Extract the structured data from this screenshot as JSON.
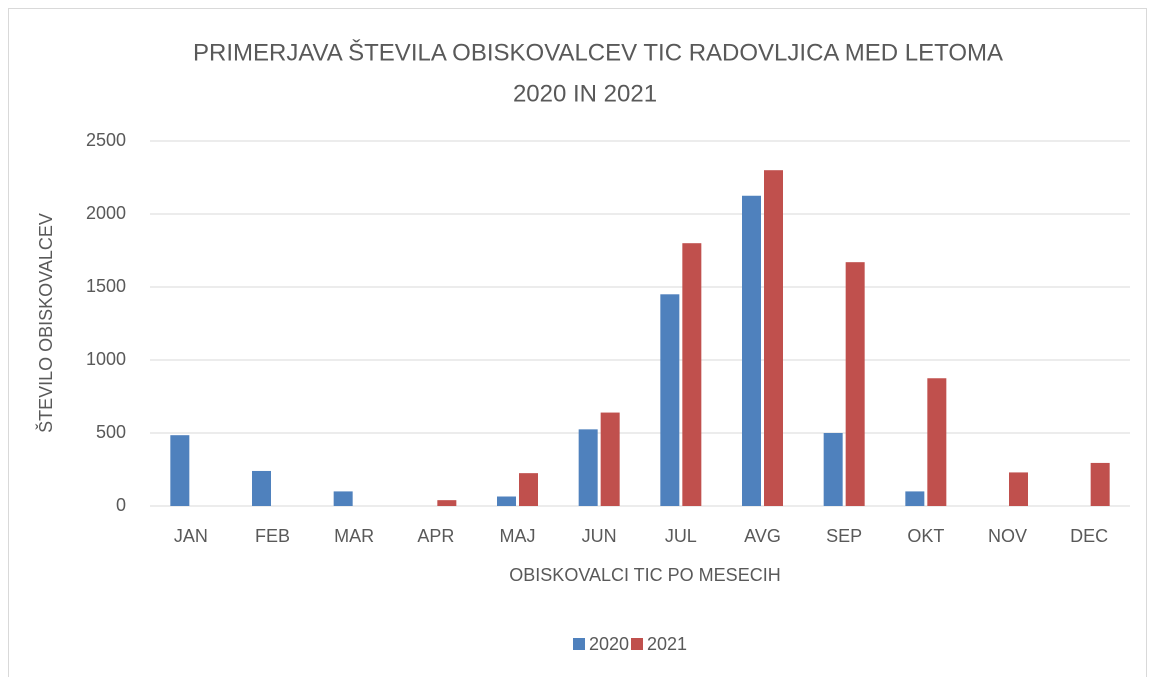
{
  "chart_data": {
    "type": "bar",
    "title": [
      "PRIMERJAVA ŠTEVILA OBISKOVALCEV  TIC RADOVLJICA MED LETOMA",
      "2020 IN 2021"
    ],
    "x_label": "OBISKOVALCI TIC PO MESECIH",
    "y_label": "ŠTEVILO OBISKOVALCEV",
    "categories": [
      "JAN",
      "FEB",
      "MAR",
      "APR",
      "MAJ",
      "JUN",
      "JUL",
      "AVG",
      "SEP",
      "OKT",
      "NOV",
      "DEC"
    ],
    "series": [
      {
        "name": "2020",
        "color": "#4f81bd",
        "values": [
          485,
          240,
          100,
          0,
          65,
          525,
          1450,
          2125,
          500,
          100,
          0,
          0
        ]
      },
      {
        "name": "2021",
        "color": "#c0504d",
        "values": [
          0,
          0,
          0,
          40,
          225,
          640,
          1800,
          2300,
          1670,
          875,
          230,
          295
        ]
      }
    ],
    "ylim": [
      0,
      2500
    ],
    "yticks": [
      0,
      500,
      1000,
      1500,
      2000,
      2500
    ],
    "grid": true,
    "legend": "bottom"
  }
}
